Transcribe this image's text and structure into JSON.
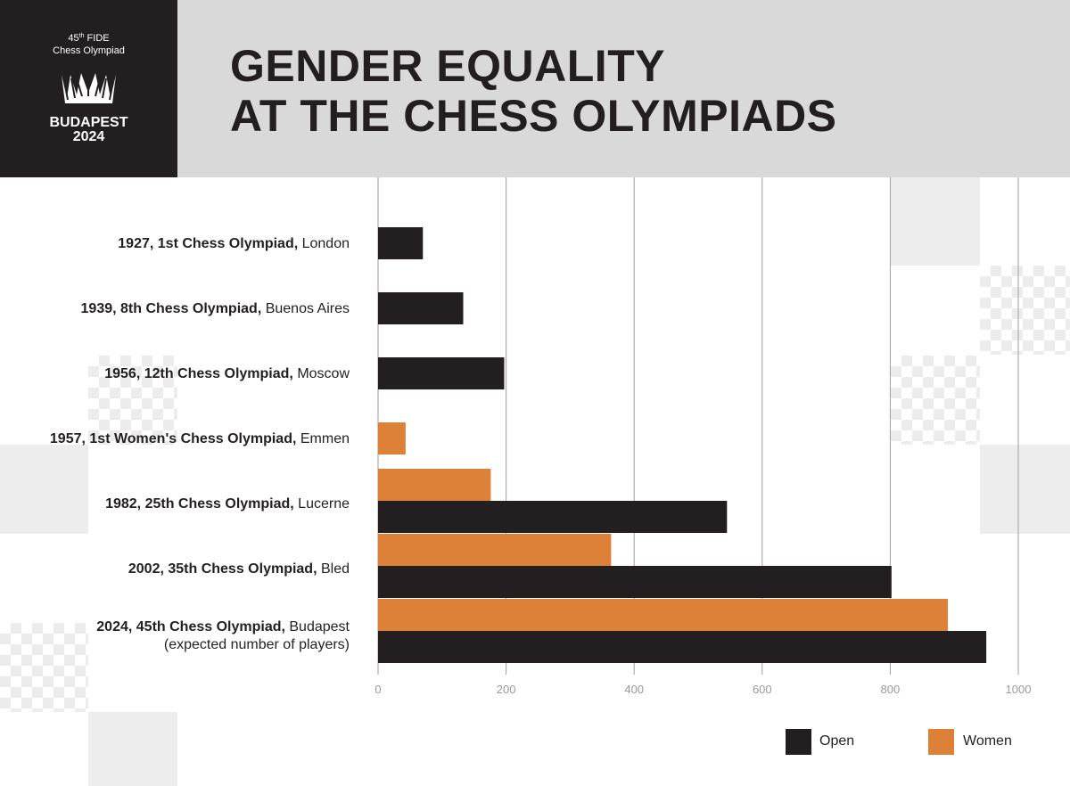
{
  "header": {
    "title_lines": [
      "GENDER EQUALITY",
      "AT THE CHESS OLYMPIADS"
    ]
  },
  "logo": {
    "edition_number": "45",
    "edition_suffix": "th",
    "edition_rest": " FIDE",
    "subtitle": "Chess Olympiad",
    "city": "BUDAPEST",
    "year": "2024"
  },
  "colors": {
    "open": "#231f20",
    "women": "#dd8038",
    "grid": "#9e9e9e",
    "header_bg": "#d8d9d8"
  },
  "chart_data": {
    "type": "bar",
    "orientation": "horizontal",
    "categories": [
      {
        "bold": "1927, 1st Chess Olympiad,",
        "rest": " London",
        "line2": ""
      },
      {
        "bold": "1939, 8th Chess Olympiad,",
        "rest": " Buenos Aires",
        "line2": ""
      },
      {
        "bold": "1956, 12th Chess Olympiad,",
        "rest": " Moscow",
        "line2": ""
      },
      {
        "bold": "1957, 1st Women's Chess Olympiad,",
        "rest": " Emmen",
        "line2": ""
      },
      {
        "bold": "1982,  25th Chess Olympiad,",
        "rest": " Lucerne",
        "line2": ""
      },
      {
        "bold": "2002, 35th Chess Olympiad,",
        "rest": " Bled",
        "line2": ""
      },
      {
        "bold": "2024, 45th Chess Olympiad,",
        "rest": " Budapest",
        "line2": "(expected number of players)"
      }
    ],
    "series": [
      {
        "name": "Open",
        "values": [
          70,
          133,
          197,
          null,
          545,
          802,
          950
        ]
      },
      {
        "name": "Women",
        "values": [
          null,
          null,
          null,
          43,
          176,
          364,
          890
        ]
      }
    ],
    "xlim": [
      0,
      1000
    ],
    "xticks": [
      0,
      200,
      400,
      600,
      800,
      1000
    ],
    "grid": true,
    "legend_position": "bottom-right"
  }
}
